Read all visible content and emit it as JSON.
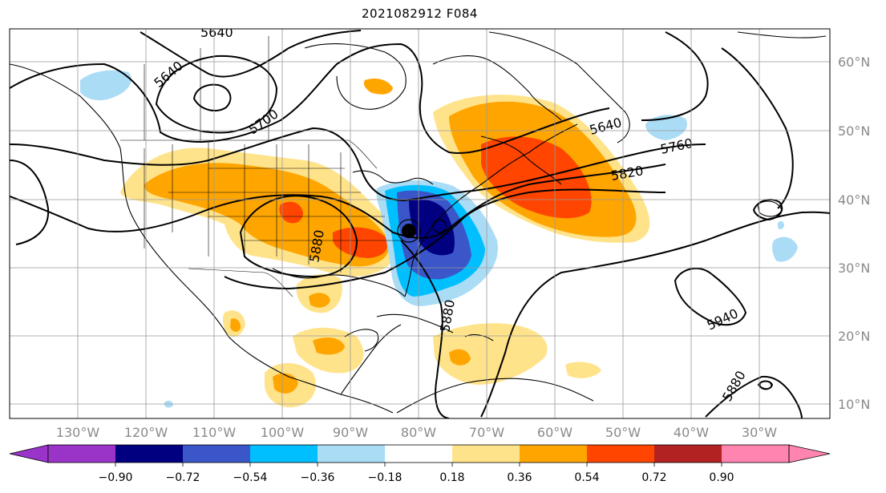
{
  "title": "2021082912 F084",
  "map": {
    "lon_labels": [
      "130°W",
      "120°W",
      "110°W",
      "100°W",
      "90°W",
      "80°W",
      "70°W",
      "60°W",
      "50°W",
      "40°W",
      "30°W"
    ],
    "lat_labels": [
      "60°N",
      "50°N",
      "40°N",
      "30°N",
      "20°N",
      "10°N"
    ],
    "contour_labels": [
      "5640",
      "5640",
      "5700",
      "5640",
      "5760",
      "5820",
      "5880",
      "5880",
      "5940",
      "5880"
    ]
  },
  "colorbar": {
    "tick_labels": [
      "−0.90",
      "−0.72",
      "−0.54",
      "−0.36",
      "−0.18",
      "0.18",
      "0.36",
      "0.54",
      "0.72",
      "0.90"
    ],
    "colors": [
      "#9a34c8",
      "#000080",
      "#3a56c8",
      "#00bfff",
      "#aadcf5",
      "#ffffff",
      "#ffe38a",
      "#ffa500",
      "#ff4500",
      "#b22222",
      "#ff85b0"
    ]
  }
}
